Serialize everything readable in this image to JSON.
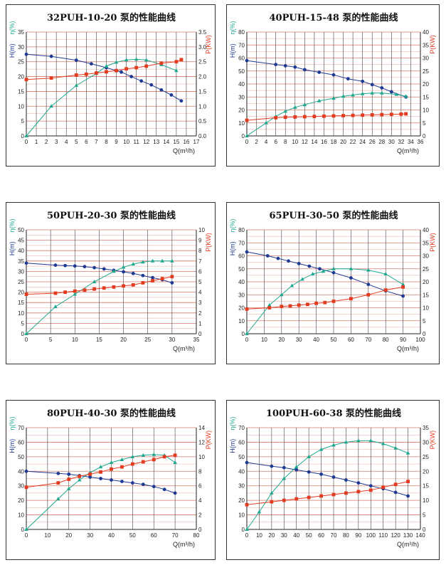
{
  "colors": {
    "head": "#1f3a93",
    "eff": "#1fa88f",
    "power": "#e23b1f",
    "grid_major": "#d87a6a",
    "grid_minor": "#e3aa9e"
  },
  "labels": {
    "x": "Q(m³/h)",
    "head": "H(m)",
    "eff": "η(%)",
    "power": "P(KW)"
  },
  "chart_data": [
    {
      "type": "line",
      "title": "32PUH-10-20 泵的性能曲线",
      "xlim": [
        0,
        17
      ],
      "xticks": [
        0,
        1,
        2,
        3,
        4,
        5,
        6,
        7,
        8,
        9,
        10,
        11,
        12,
        13,
        14,
        15,
        16,
        17
      ],
      "left_ticks": [
        0,
        5,
        10,
        15,
        20,
        25,
        30,
        35
      ],
      "right_ticks": [
        0,
        0.5,
        1.0,
        1.5,
        2.0,
        2.5,
        3.0,
        3.5
      ],
      "right_lim": [
        0,
        3.5
      ],
      "series": [
        {
          "key": "head",
          "axis": "left",
          "x": [
            0,
            2.5,
            5,
            6.5,
            8,
            9.5,
            10.5,
            11.5,
            12.5,
            13.5,
            14.5,
            15.5
          ],
          "y": [
            27.5,
            26.8,
            25.5,
            24.3,
            23,
            21.5,
            20,
            18.5,
            17.2,
            15.5,
            13.8,
            11.8
          ]
        },
        {
          "key": "eff",
          "axis": "left",
          "x": [
            0,
            2.5,
            5,
            7,
            8,
            9,
            10,
            11,
            12,
            13.5,
            15
          ],
          "y": [
            0,
            10,
            17,
            21,
            23.5,
            24.8,
            25.6,
            25.8,
            25.6,
            24,
            22
          ]
        },
        {
          "key": "power",
          "axis": "right",
          "x": [
            0,
            2.5,
            5,
            6,
            7,
            8,
            9,
            10,
            11,
            12,
            13.5,
            15,
            15.5
          ],
          "y": [
            1.9,
            1.95,
            2.05,
            2.08,
            2.12,
            2.16,
            2.2,
            2.26,
            2.3,
            2.35,
            2.45,
            2.5,
            2.57
          ]
        }
      ]
    },
    {
      "type": "line",
      "title": "40PUH-15-48 泵的性能曲线",
      "xlim": [
        0,
        36
      ],
      "xticks": [
        0,
        2,
        4,
        6,
        8,
        10,
        12,
        14,
        16,
        18,
        20,
        22,
        24,
        26,
        28,
        30,
        32,
        34,
        36
      ],
      "left_ticks": [
        0,
        10,
        20,
        30,
        40,
        50,
        60,
        70,
        80
      ],
      "right_ticks": [
        0,
        5,
        10,
        15,
        20,
        25,
        30,
        35,
        40
      ],
      "right_lim": [
        0,
        40
      ],
      "series": [
        {
          "key": "head",
          "axis": "left",
          "x": [
            0,
            6,
            8,
            10,
            12,
            15,
            18,
            21,
            24,
            26,
            28,
            30,
            33
          ],
          "y": [
            58,
            55,
            54,
            53,
            51,
            49,
            47,
            44,
            42,
            39.5,
            37,
            34,
            30
          ]
        },
        {
          "key": "eff",
          "axis": "left",
          "x": [
            0,
            4,
            6,
            8,
            10,
            12,
            15,
            18,
            20,
            22,
            24,
            26,
            28,
            31,
            33
          ],
          "y": [
            0,
            10,
            15,
            19,
            22,
            24,
            27,
            29,
            30.5,
            31.5,
            32.5,
            33,
            33,
            32,
            30.5
          ]
        },
        {
          "key": "power",
          "axis": "right",
          "x": [
            0,
            6,
            8,
            10,
            12,
            14,
            16,
            18,
            20,
            22,
            24,
            26,
            28,
            30,
            32,
            33
          ],
          "y": [
            6,
            7,
            7.2,
            7.3,
            7.4,
            7.5,
            7.6,
            7.7,
            7.8,
            7.9,
            8,
            8.1,
            8.2,
            8.3,
            8.4,
            8.5
          ]
        }
      ]
    },
    {
      "type": "line",
      "title": "50PUH-20-30 泵的性能曲线",
      "xlim": [
        0,
        35
      ],
      "xticks": [
        0,
        5,
        10,
        15,
        20,
        25,
        30,
        35
      ],
      "left_ticks": [
        0,
        5,
        10,
        15,
        20,
        25,
        30,
        35,
        40,
        45,
        50
      ],
      "right_ticks": [
        0,
        1,
        2,
        3,
        4,
        5,
        6,
        7,
        8,
        9,
        10
      ],
      "right_lim": [
        0,
        10
      ],
      "series": [
        {
          "key": "head",
          "axis": "left",
          "x": [
            0,
            6,
            8,
            10,
            12,
            14,
            16,
            18,
            20,
            22,
            24,
            26,
            28,
            30
          ],
          "y": [
            34,
            33,
            32.8,
            32.6,
            32.3,
            31.8,
            31.2,
            30.5,
            29.8,
            29,
            28,
            27,
            26,
            24.5
          ]
        },
        {
          "key": "eff",
          "axis": "left",
          "x": [
            0,
            6,
            10,
            14,
            18,
            20,
            22,
            24,
            26,
            28,
            30
          ],
          "y": [
            0,
            13,
            19,
            25,
            30,
            32,
            33.5,
            34.5,
            35,
            35,
            35
          ]
        },
        {
          "key": "power",
          "axis": "right",
          "x": [
            0,
            6,
            8,
            10,
            12,
            14,
            16,
            18,
            20,
            22,
            24,
            26,
            28,
            30
          ],
          "y": [
            3.8,
            3.9,
            4,
            4.1,
            4.2,
            4.3,
            4.4,
            4.5,
            4.6,
            4.7,
            4.9,
            5.1,
            5.3,
            5.5
          ]
        }
      ]
    },
    {
      "type": "line",
      "title": "65PUH-30-50 泵的性能曲线",
      "xlim": [
        0,
        100
      ],
      "xticks": [
        0,
        10,
        20,
        30,
        40,
        50,
        60,
        70,
        80,
        90,
        100
      ],
      "left_ticks": [
        0,
        10,
        20,
        30,
        40,
        50,
        60,
        70,
        80
      ],
      "right_ticks": [
        0,
        5,
        10,
        15,
        20,
        25,
        30,
        35,
        40
      ],
      "right_lim": [
        0,
        40
      ],
      "series": [
        {
          "key": "head",
          "axis": "left",
          "x": [
            0,
            12,
            18,
            24,
            30,
            36,
            42,
            50,
            60,
            70,
            80,
            90
          ],
          "y": [
            63,
            60,
            58,
            56,
            54,
            52,
            50,
            47,
            43,
            38,
            33,
            29
          ]
        },
        {
          "key": "eff",
          "axis": "left",
          "x": [
            0,
            13,
            20,
            26,
            32,
            38,
            44,
            50,
            60,
            70,
            80,
            90
          ],
          "y": [
            0,
            22,
            30,
            37,
            42,
            46,
            48,
            50,
            50,
            49,
            46,
            38
          ]
        },
        {
          "key": "power",
          "axis": "right",
          "x": [
            0,
            13,
            20,
            25,
            30,
            35,
            40,
            45,
            50,
            60,
            70,
            80,
            90
          ],
          "y": [
            9.5,
            10,
            10.5,
            10.7,
            11,
            11.3,
            11.7,
            12,
            12.5,
            13.5,
            15,
            16.8,
            18
          ]
        }
      ]
    },
    {
      "type": "line",
      "title": "80PUH-40-30 泵的性能曲线",
      "xlim": [
        0,
        80
      ],
      "xticks": [
        0,
        10,
        20,
        30,
        40,
        50,
        60,
        70,
        80
      ],
      "left_ticks": [
        0,
        10,
        20,
        30,
        40,
        50,
        60,
        70
      ],
      "right_ticks": [
        0,
        2,
        4,
        6,
        8,
        10,
        12,
        14
      ],
      "right_lim": [
        0,
        14
      ],
      "series": [
        {
          "key": "head",
          "axis": "left",
          "x": [
            0,
            15,
            20,
            25,
            30,
            35,
            40,
            45,
            50,
            55,
            60,
            65,
            70
          ],
          "y": [
            40,
            38.5,
            38,
            37,
            36,
            35,
            34,
            33,
            32,
            31,
            29.5,
            27.5,
            25
          ]
        },
        {
          "key": "eff",
          "axis": "left",
          "x": [
            0,
            15,
            20,
            25,
            30,
            35,
            40,
            45,
            50,
            55,
            60,
            65,
            70
          ],
          "y": [
            0,
            21,
            28,
            34,
            39,
            43,
            46,
            48,
            50,
            51,
            51.5,
            51,
            46
          ]
        },
        {
          "key": "power",
          "axis": "right",
          "x": [
            0,
            15,
            20,
            25,
            30,
            35,
            40,
            45,
            50,
            55,
            60,
            65,
            70
          ],
          "y": [
            5.8,
            6.4,
            6.9,
            7.3,
            7.6,
            7.9,
            8.3,
            8.6,
            9,
            9.3,
            9.6,
            10,
            10.2
          ]
        }
      ]
    },
    {
      "type": "line",
      "title": "100PUH-60-38 泵的性能曲线",
      "xlim": [
        0,
        140
      ],
      "xticks": [
        0,
        10,
        20,
        30,
        40,
        50,
        60,
        70,
        80,
        90,
        100,
        110,
        120,
        130,
        140
      ],
      "left_ticks": [
        0,
        10,
        20,
        30,
        40,
        50,
        60,
        70
      ],
      "right_ticks": [
        0,
        5,
        10,
        15,
        20,
        25,
        30,
        35
      ],
      "right_lim": [
        0,
        35
      ],
      "series": [
        {
          "key": "head",
          "axis": "left",
          "x": [
            0,
            20,
            30,
            40,
            50,
            60,
            70,
            80,
            90,
            100,
            110,
            120,
            130
          ],
          "y": [
            46,
            43.5,
            42.5,
            41,
            39.5,
            38,
            36,
            34,
            32,
            30,
            28,
            25.5,
            23
          ]
        },
        {
          "key": "eff",
          "axis": "left",
          "x": [
            0,
            10,
            20,
            30,
            40,
            50,
            60,
            70,
            80,
            90,
            100,
            110,
            120,
            130
          ],
          "y": [
            0,
            12,
            25,
            35,
            43,
            50,
            55,
            58,
            60,
            61,
            61,
            59,
            56,
            52.5
          ]
        },
        {
          "key": "power",
          "axis": "right",
          "x": [
            0,
            20,
            30,
            40,
            50,
            60,
            70,
            80,
            90,
            100,
            110,
            120,
            130
          ],
          "y": [
            8.5,
            9.5,
            10,
            10.5,
            11,
            11.5,
            12,
            12.5,
            13,
            13.5,
            14.5,
            15.5,
            16.5
          ]
        }
      ]
    }
  ]
}
